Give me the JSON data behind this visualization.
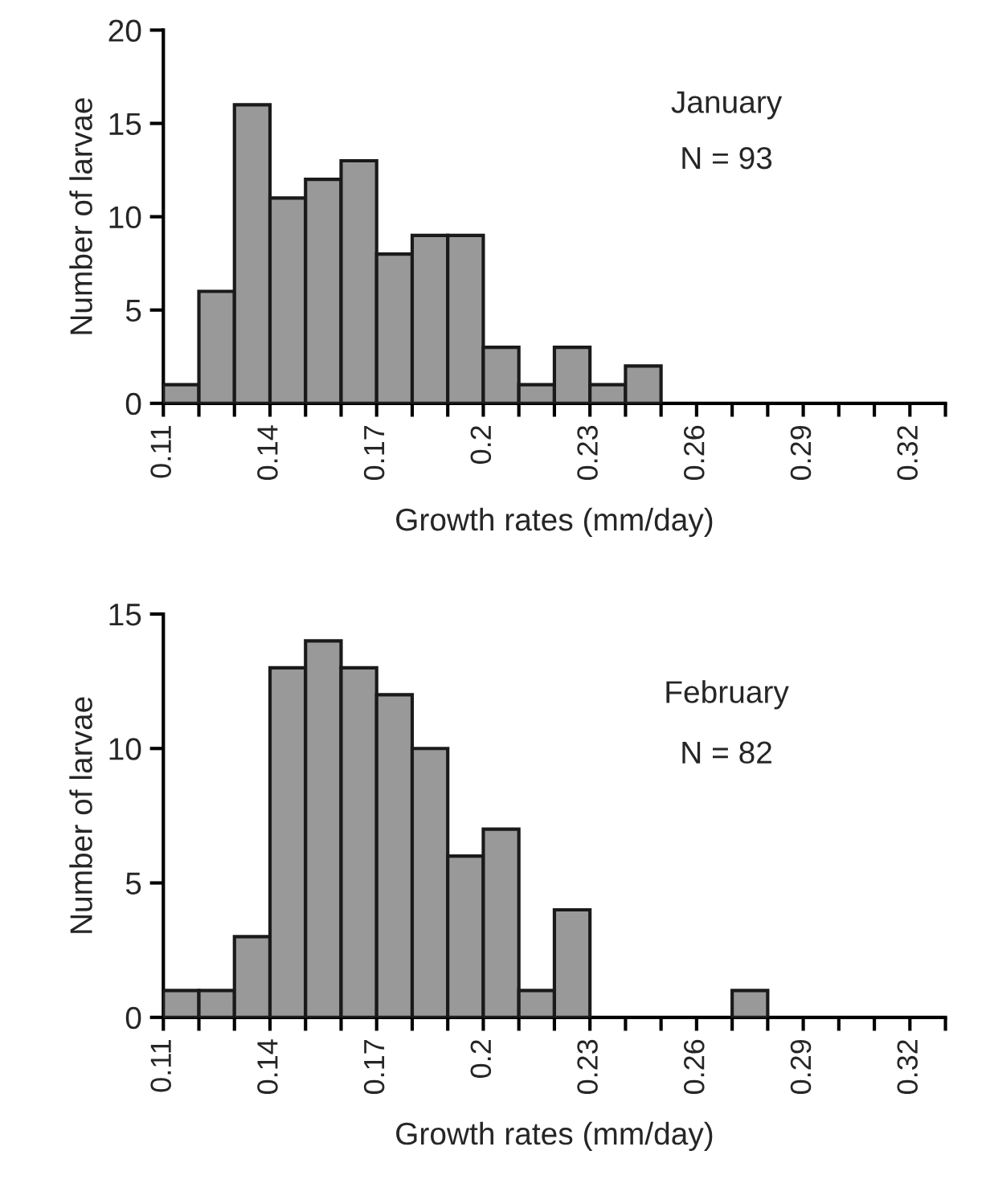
{
  "chart_data": [
    {
      "type": "histogram",
      "xlabel": "Growth rates (mm/day)",
      "ylabel": "Number of larvae",
      "annotations": [
        "January",
        "N = 93"
      ],
      "color": "#999999",
      "bins": [
        0.11,
        0.12,
        0.13,
        0.14,
        0.15,
        0.16,
        0.17,
        0.18,
        0.19,
        0.2,
        0.21,
        0.22,
        0.23,
        0.24,
        0.25
      ],
      "values": [
        1,
        6,
        16,
        11,
        12,
        13,
        8,
        9,
        9,
        3,
        1,
        3,
        1,
        2
      ],
      "xlim": [
        0.11,
        0.33
      ],
      "xticks": [
        0.11,
        {
          "value": 0.12,
          "label": null
        },
        {
          "value": 0.13,
          "label": null
        },
        0.14,
        {
          "value": 0.15,
          "label": null
        },
        {
          "value": 0.16,
          "label": null
        },
        0.17,
        {
          "value": 0.18,
          "label": null
        },
        {
          "value": 0.19,
          "label": null
        },
        0.2,
        {
          "value": 0.21,
          "label": null
        },
        {
          "value": 0.22,
          "label": null
        },
        0.23,
        {
          "value": 0.24,
          "label": null
        },
        {
          "value": 0.25,
          "label": null
        },
        0.26,
        {
          "value": 0.27,
          "label": null
        },
        {
          "value": 0.28,
          "label": null
        },
        0.29,
        {
          "value": 0.3,
          "label": null
        },
        {
          "value": 0.31,
          "label": null
        },
        0.32,
        {
          "value": 0.33,
          "label": null
        }
      ],
      "ylim": [
        0,
        20
      ],
      "yticks": [
        0,
        5,
        10,
        15,
        20
      ],
      "grid": false,
      "legend": false
    },
    {
      "type": "histogram",
      "xlabel": "Growth rates (mm/day)",
      "ylabel": "Number of larvae",
      "annotations": [
        "February",
        "N = 82"
      ],
      "color": "#999999",
      "bins": [
        0.11,
        0.12,
        0.13,
        0.14,
        0.15,
        0.16,
        0.17,
        0.18,
        0.19,
        0.2,
        0.21,
        0.22,
        0.23,
        0.24,
        0.25,
        0.26,
        0.27,
        0.28
      ],
      "values": [
        1,
        1,
        3,
        13,
        14,
        13,
        12,
        10,
        6,
        7,
        1,
        4,
        0,
        0,
        0,
        0,
        1
      ],
      "xlim": [
        0.11,
        0.33
      ],
      "xticks": [
        0.11,
        {
          "value": 0.12,
          "label": null
        },
        {
          "value": 0.13,
          "label": null
        },
        0.14,
        {
          "value": 0.15,
          "label": null
        },
        {
          "value": 0.16,
          "label": null
        },
        0.17,
        {
          "value": 0.18,
          "label": null
        },
        {
          "value": 0.19,
          "label": null
        },
        0.2,
        {
          "value": 0.21,
          "label": null
        },
        {
          "value": 0.22,
          "label": null
        },
        0.23,
        {
          "value": 0.24,
          "label": null
        },
        {
          "value": 0.25,
          "label": null
        },
        0.26,
        {
          "value": 0.27,
          "label": null
        },
        {
          "value": 0.28,
          "label": null
        },
        0.29,
        {
          "value": 0.3,
          "label": null
        },
        {
          "value": 0.31,
          "label": null
        },
        0.32,
        {
          "value": 0.33,
          "label": null
        }
      ],
      "ylim": [
        0,
        15
      ],
      "yticks": [
        0,
        5,
        10,
        15
      ],
      "grid": false,
      "legend": false
    }
  ]
}
